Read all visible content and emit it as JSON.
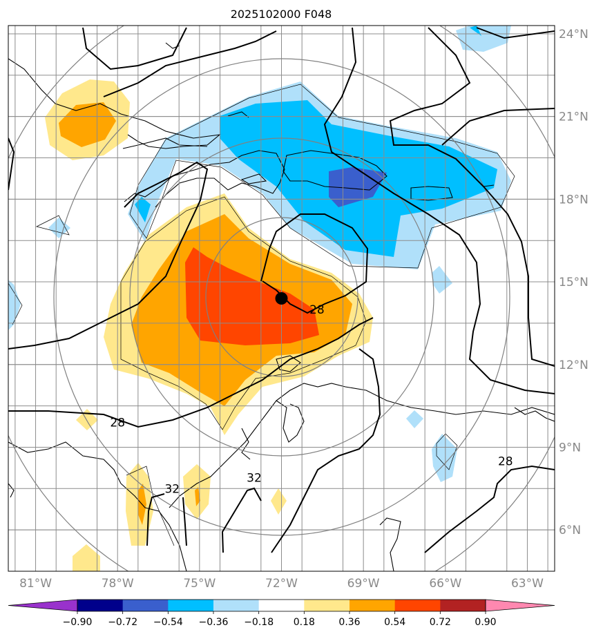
{
  "title": "2025102000 F048",
  "map": {
    "lon_range": [
      -82,
      -62
    ],
    "lat_range": [
      4.5,
      24.3
    ],
    "lon_ticks": [
      {
        "value": -81,
        "label": "81°W"
      },
      {
        "value": -78,
        "label": "78°W"
      },
      {
        "value": -75,
        "label": "75°W"
      },
      {
        "value": -72,
        "label": "72°W"
      },
      {
        "value": -69,
        "label": "69°W"
      },
      {
        "value": -66,
        "label": "66°W"
      },
      {
        "value": -63,
        "label": "63°W"
      }
    ],
    "lat_ticks": [
      {
        "value": 24,
        "label": "24°N"
      },
      {
        "value": 21,
        "label": "21°N"
      },
      {
        "value": 18,
        "label": "18°N"
      },
      {
        "value": 15,
        "label": "15°N"
      },
      {
        "value": 12,
        "label": "12°N"
      },
      {
        "value": 9,
        "label": "9°N"
      },
      {
        "value": 6,
        "label": "6°N"
      }
    ],
    "center_marker": {
      "lon": -72.0,
      "lat": 14.4
    },
    "contour_labels": [
      {
        "text": "28",
        "lon": -70.7,
        "lat": 14.0
      },
      {
        "text": "28",
        "lon": -78.0,
        "lat": 9.9
      },
      {
        "text": "32",
        "lon": -76.0,
        "lat": 7.5
      },
      {
        "text": "32",
        "lon": -73.0,
        "lat": 7.9
      },
      {
        "text": "28",
        "lon": -63.8,
        "lat": 8.5
      }
    ]
  },
  "colorbar": {
    "ticks": [
      "−0.90",
      "−0.72",
      "−0.54",
      "−0.36",
      "−0.18",
      "0.18",
      "0.36",
      "0.54",
      "0.72",
      "0.90"
    ],
    "colors": [
      "#9932cc",
      "#00008b",
      "#3a5fcd",
      "#00bfff",
      "#b0e0fa",
      "#ffffff",
      "#ffe88c",
      "#ffa500",
      "#ff4500",
      "#b22222",
      "#ff88b0"
    ]
  }
}
